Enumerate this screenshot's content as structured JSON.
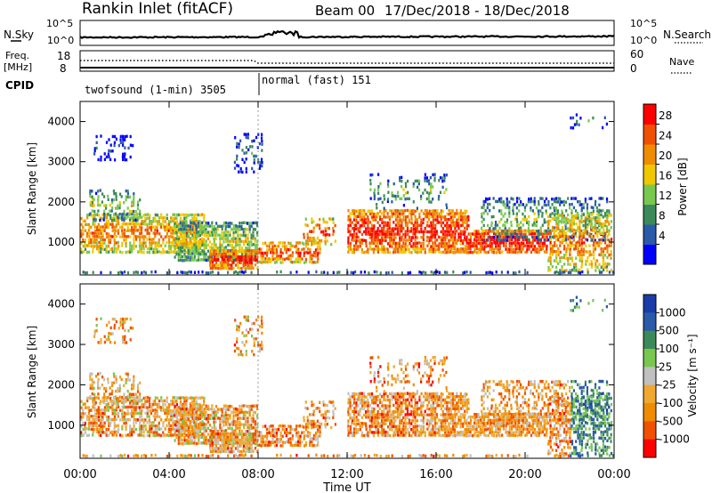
{
  "header": {
    "station": "Rankin Inlet (fitACF)",
    "beam": "Beam 00",
    "daterange": "17/Dec/2018 - 18/Dec/2018"
  },
  "status_panels": {
    "nsky_label": "N.Sky",
    "nsky_ticks": [
      "10^5",
      "10^0"
    ],
    "nsearch_label": "N.Search",
    "nsearch_ticks": [
      "10^5",
      "10^0"
    ],
    "freq_label": "Freq.",
    "freq_unit": "[MHz]",
    "freq_ticks": [
      "18",
      "8"
    ],
    "nave_label": "Nave",
    "nave_ticks": [
      "60",
      "0"
    ],
    "cpid_label": "CPID",
    "cpid_segments": [
      {
        "label": "twofsound (1-min) 3505",
        "start_hour": 0,
        "end_hour": 8
      },
      {
        "label": "normal (fast) 151",
        "start_hour": 8,
        "end_hour": 24
      }
    ]
  },
  "colors": {
    "power": [
      "#0000ff",
      "#2a5aa8",
      "#3c8a5a",
      "#78c850",
      "#f0c800",
      "#f08c00",
      "#f05000",
      "#ff0000"
    ],
    "velocity": [
      "#ff0000",
      "#f05000",
      "#f08c00",
      "#f0a830",
      "#c0c0c0",
      "#78c850",
      "#3c8a5a",
      "#2a5aa8",
      "#1a3ca8"
    ]
  },
  "chart_data": [
    {
      "type": "heatmap",
      "name": "power",
      "x_label": "Time UT",
      "y_label": "Slant Range [km]",
      "x_ticks": [
        "00:00",
        "04:00",
        "08:00",
        "12:00",
        "16:00",
        "20:00",
        "00:00"
      ],
      "x_range_hours": [
        0,
        24
      ],
      "y_ticks": [
        1000,
        2000,
        3000,
        4000
      ],
      "y_range": [
        180,
        4500
      ],
      "colorbar_label": "Power [dB]",
      "colorbar_ticks": [
        "28",
        "24",
        "20",
        "16",
        "12",
        "8",
        "4"
      ],
      "colorbar_range": [
        0,
        32
      ]
    },
    {
      "type": "heatmap",
      "name": "velocity",
      "x_label": "Time UT",
      "y_label": "Slant Range [km]",
      "x_ticks": [
        "00:00",
        "04:00",
        "08:00",
        "12:00",
        "16:00",
        "20:00",
        "00:00"
      ],
      "x_range_hours": [
        0,
        24
      ],
      "y_ticks": [
        1000,
        2000,
        3000,
        4000
      ],
      "y_range": [
        180,
        4500
      ],
      "colorbar_label": "Velocity [m s⁻¹]",
      "colorbar_ticks": [
        "1000",
        "500",
        "100",
        "25",
        "-25",
        "-100",
        "-500",
        "-1000"
      ]
    }
  ]
}
